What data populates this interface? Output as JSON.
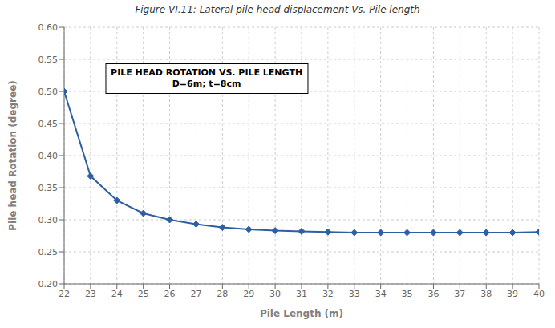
{
  "chart_data": {
    "type": "line",
    "title": "Figure VI.11: Lateral pile head displacement Vs. Pile length",
    "xlabel": "Pile Length (m)",
    "ylabel": "Pile head Rotation (degree)",
    "annotations": [
      "PILE HEAD ROTATION VS. PILE LENGTH",
      "D=6m; t=8cm"
    ],
    "x": [
      22,
      23,
      24,
      25,
      26,
      27,
      28,
      29,
      30,
      31,
      32,
      33,
      34,
      35,
      36,
      37,
      38,
      39,
      40
    ],
    "values": [
      0.5,
      0.368,
      0.33,
      0.31,
      0.3,
      0.293,
      0.288,
      0.285,
      0.283,
      0.282,
      0.281,
      0.28,
      0.28,
      0.28,
      0.28,
      0.28,
      0.28,
      0.28,
      0.281
    ],
    "color": "#2E5FA3",
    "marker": "diamond",
    "xlim": [
      22,
      40
    ],
    "ylim": [
      0.2,
      0.6
    ],
    "xticks": [
      22,
      23,
      24,
      25,
      26,
      27,
      28,
      29,
      30,
      31,
      32,
      33,
      34,
      35,
      36,
      37,
      38,
      39,
      40
    ],
    "yticks": [
      {
        "value": 0.2,
        "label": "0.20"
      },
      0.25,
      {
        "value": 0.3,
        "label": "0.30"
      },
      0.35,
      {
        "value": 0.4,
        "label": "0.40"
      },
      0.45,
      {
        "value": 0.5,
        "label": "0.50"
      },
      0.55,
      {
        "value": 0.6,
        "label": "0.60"
      }
    ],
    "grid": true
  }
}
